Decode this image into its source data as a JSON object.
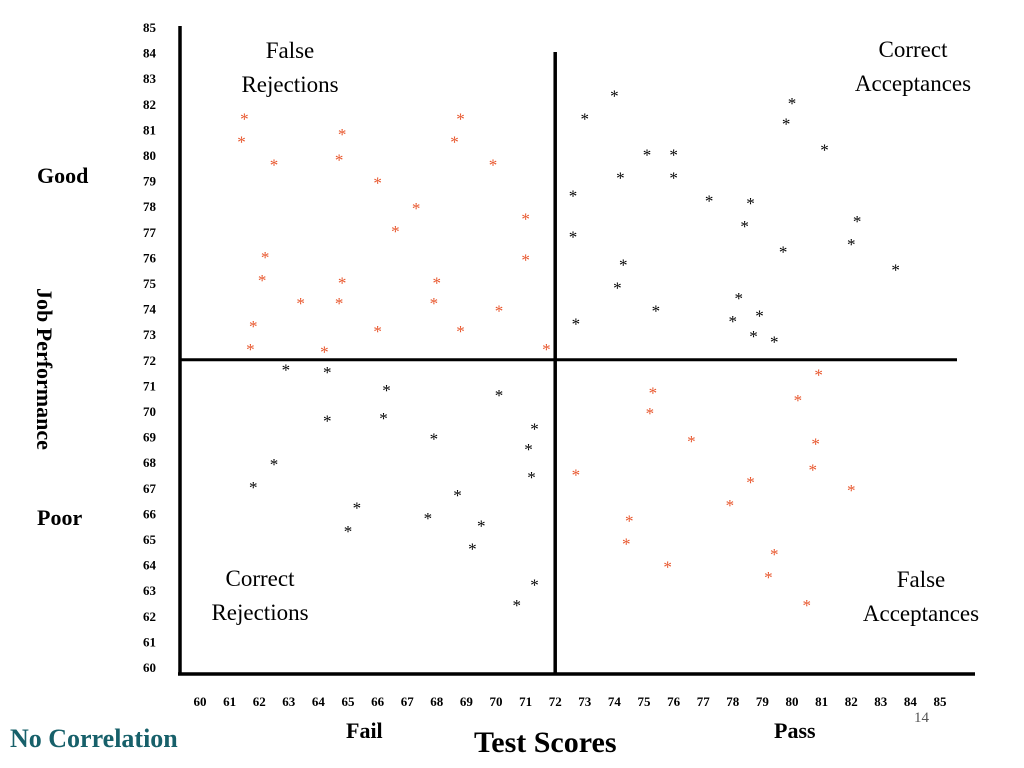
{
  "footer": {
    "title": "No Correlation",
    "page_number": "14"
  },
  "y_side_labels": {
    "top": "Good",
    "bottom": "Poor",
    "middle": "Job Performance"
  },
  "x_side_labels": {
    "left": "Fail",
    "right": "Pass"
  },
  "colors": {
    "ink": "#000000",
    "highlight": "#e8542a",
    "footer": "#17606a"
  },
  "chart_data": {
    "type": "scatter",
    "xlabel": "Test Scores",
    "ylabel": "",
    "xlim": [
      60,
      85
    ],
    "ylim": [
      60,
      85
    ],
    "xticks": [
      60,
      61,
      62,
      63,
      64,
      65,
      66,
      67,
      68,
      69,
      70,
      71,
      72,
      73,
      74,
      75,
      76,
      77,
      78,
      79,
      80,
      81,
      82,
      83,
      84,
      85
    ],
    "yticks": [
      60,
      61,
      62,
      63,
      64,
      65,
      66,
      67,
      68,
      69,
      70,
      71,
      72,
      73,
      74,
      75,
      76,
      77,
      78,
      79,
      80,
      81,
      82,
      83,
      84,
      85
    ],
    "grid": false,
    "cutoffs": {
      "x": 72,
      "y": 72
    },
    "marker": "*",
    "quadrant_labels": {
      "top_left": "False Rejections",
      "top_right": "Correct Acceptances",
      "bottom_left": "Correct Rejections",
      "bottom_right": "False Acceptances"
    },
    "series": [
      {
        "color": "#e8542a",
        "points": [
          [
            61.5,
            81.5
          ],
          [
            61.4,
            80.6
          ],
          [
            62.5,
            79.7
          ],
          [
            64.8,
            80.9
          ],
          [
            64.7,
            79.9
          ],
          [
            66,
            79
          ],
          [
            67.3,
            78
          ],
          [
            66.6,
            77.1
          ],
          [
            68.8,
            81.5
          ],
          [
            68.6,
            80.6
          ],
          [
            69.9,
            79.7
          ],
          [
            71,
            77.6
          ],
          [
            71,
            76
          ],
          [
            62.2,
            76.1
          ],
          [
            62.1,
            75.2
          ],
          [
            64.8,
            75.1
          ],
          [
            68,
            75.1
          ],
          [
            63.4,
            74.3
          ],
          [
            64.7,
            74.3
          ],
          [
            67.9,
            74.3
          ],
          [
            70.1,
            74
          ],
          [
            61.8,
            73.4
          ],
          [
            66,
            73.2
          ],
          [
            68.8,
            73.2
          ],
          [
            61.7,
            72.5
          ],
          [
            64.2,
            72.4
          ],
          [
            71.7,
            72.5
          ],
          [
            80.9,
            71.5
          ],
          [
            75.3,
            70.8
          ],
          [
            80.2,
            70.5
          ],
          [
            75.2,
            70
          ],
          [
            76.6,
            68.9
          ],
          [
            80.8,
            68.8
          ],
          [
            72.7,
            67.6
          ],
          [
            80.7,
            67.8
          ],
          [
            78.6,
            67.3
          ],
          [
            82,
            67
          ],
          [
            77.9,
            66.4
          ],
          [
            74.5,
            65.8
          ],
          [
            74.4,
            64.9
          ],
          [
            79.4,
            64.5
          ],
          [
            75.8,
            64
          ],
          [
            79.2,
            63.6
          ],
          [
            80.5,
            62.5
          ]
        ]
      },
      {
        "color": "#000000",
        "points": [
          [
            74,
            82.4
          ],
          [
            80,
            82.1
          ],
          [
            73,
            81.5
          ],
          [
            79.8,
            81.3
          ],
          [
            81.1,
            80.3
          ],
          [
            75.1,
            80.1
          ],
          [
            76,
            80.1
          ],
          [
            74.2,
            79.2
          ],
          [
            76,
            79.2
          ],
          [
            72.6,
            78.5
          ],
          [
            77.2,
            78.3
          ],
          [
            78.6,
            78.2
          ],
          [
            82.2,
            77.5
          ],
          [
            78.4,
            77.3
          ],
          [
            72.6,
            76.9
          ],
          [
            82,
            76.6
          ],
          [
            79.7,
            76.3
          ],
          [
            74.3,
            75.8
          ],
          [
            83.5,
            75.6
          ],
          [
            74.1,
            74.9
          ],
          [
            78.2,
            74.5
          ],
          [
            75.4,
            74
          ],
          [
            78.9,
            73.8
          ],
          [
            78,
            73.6
          ],
          [
            72.7,
            73.5
          ],
          [
            78.7,
            73
          ],
          [
            79.4,
            72.8
          ],
          [
            62.9,
            71.7
          ],
          [
            64.3,
            71.6
          ],
          [
            66.3,
            70.9
          ],
          [
            70.1,
            70.7
          ],
          [
            64.3,
            69.7
          ],
          [
            66.2,
            69.8
          ],
          [
            71.3,
            69.4
          ],
          [
            67.9,
            69
          ],
          [
            71.1,
            68.6
          ],
          [
            62.5,
            68
          ],
          [
            71.2,
            67.5
          ],
          [
            61.8,
            67.1
          ],
          [
            68.7,
            66.8
          ],
          [
            65.3,
            66.3
          ],
          [
            67.7,
            65.9
          ],
          [
            69.5,
            65.6
          ],
          [
            65,
            65.4
          ],
          [
            69.2,
            64.7
          ],
          [
            71.3,
            63.3
          ],
          [
            70.7,
            62.5
          ]
        ]
      }
    ]
  }
}
